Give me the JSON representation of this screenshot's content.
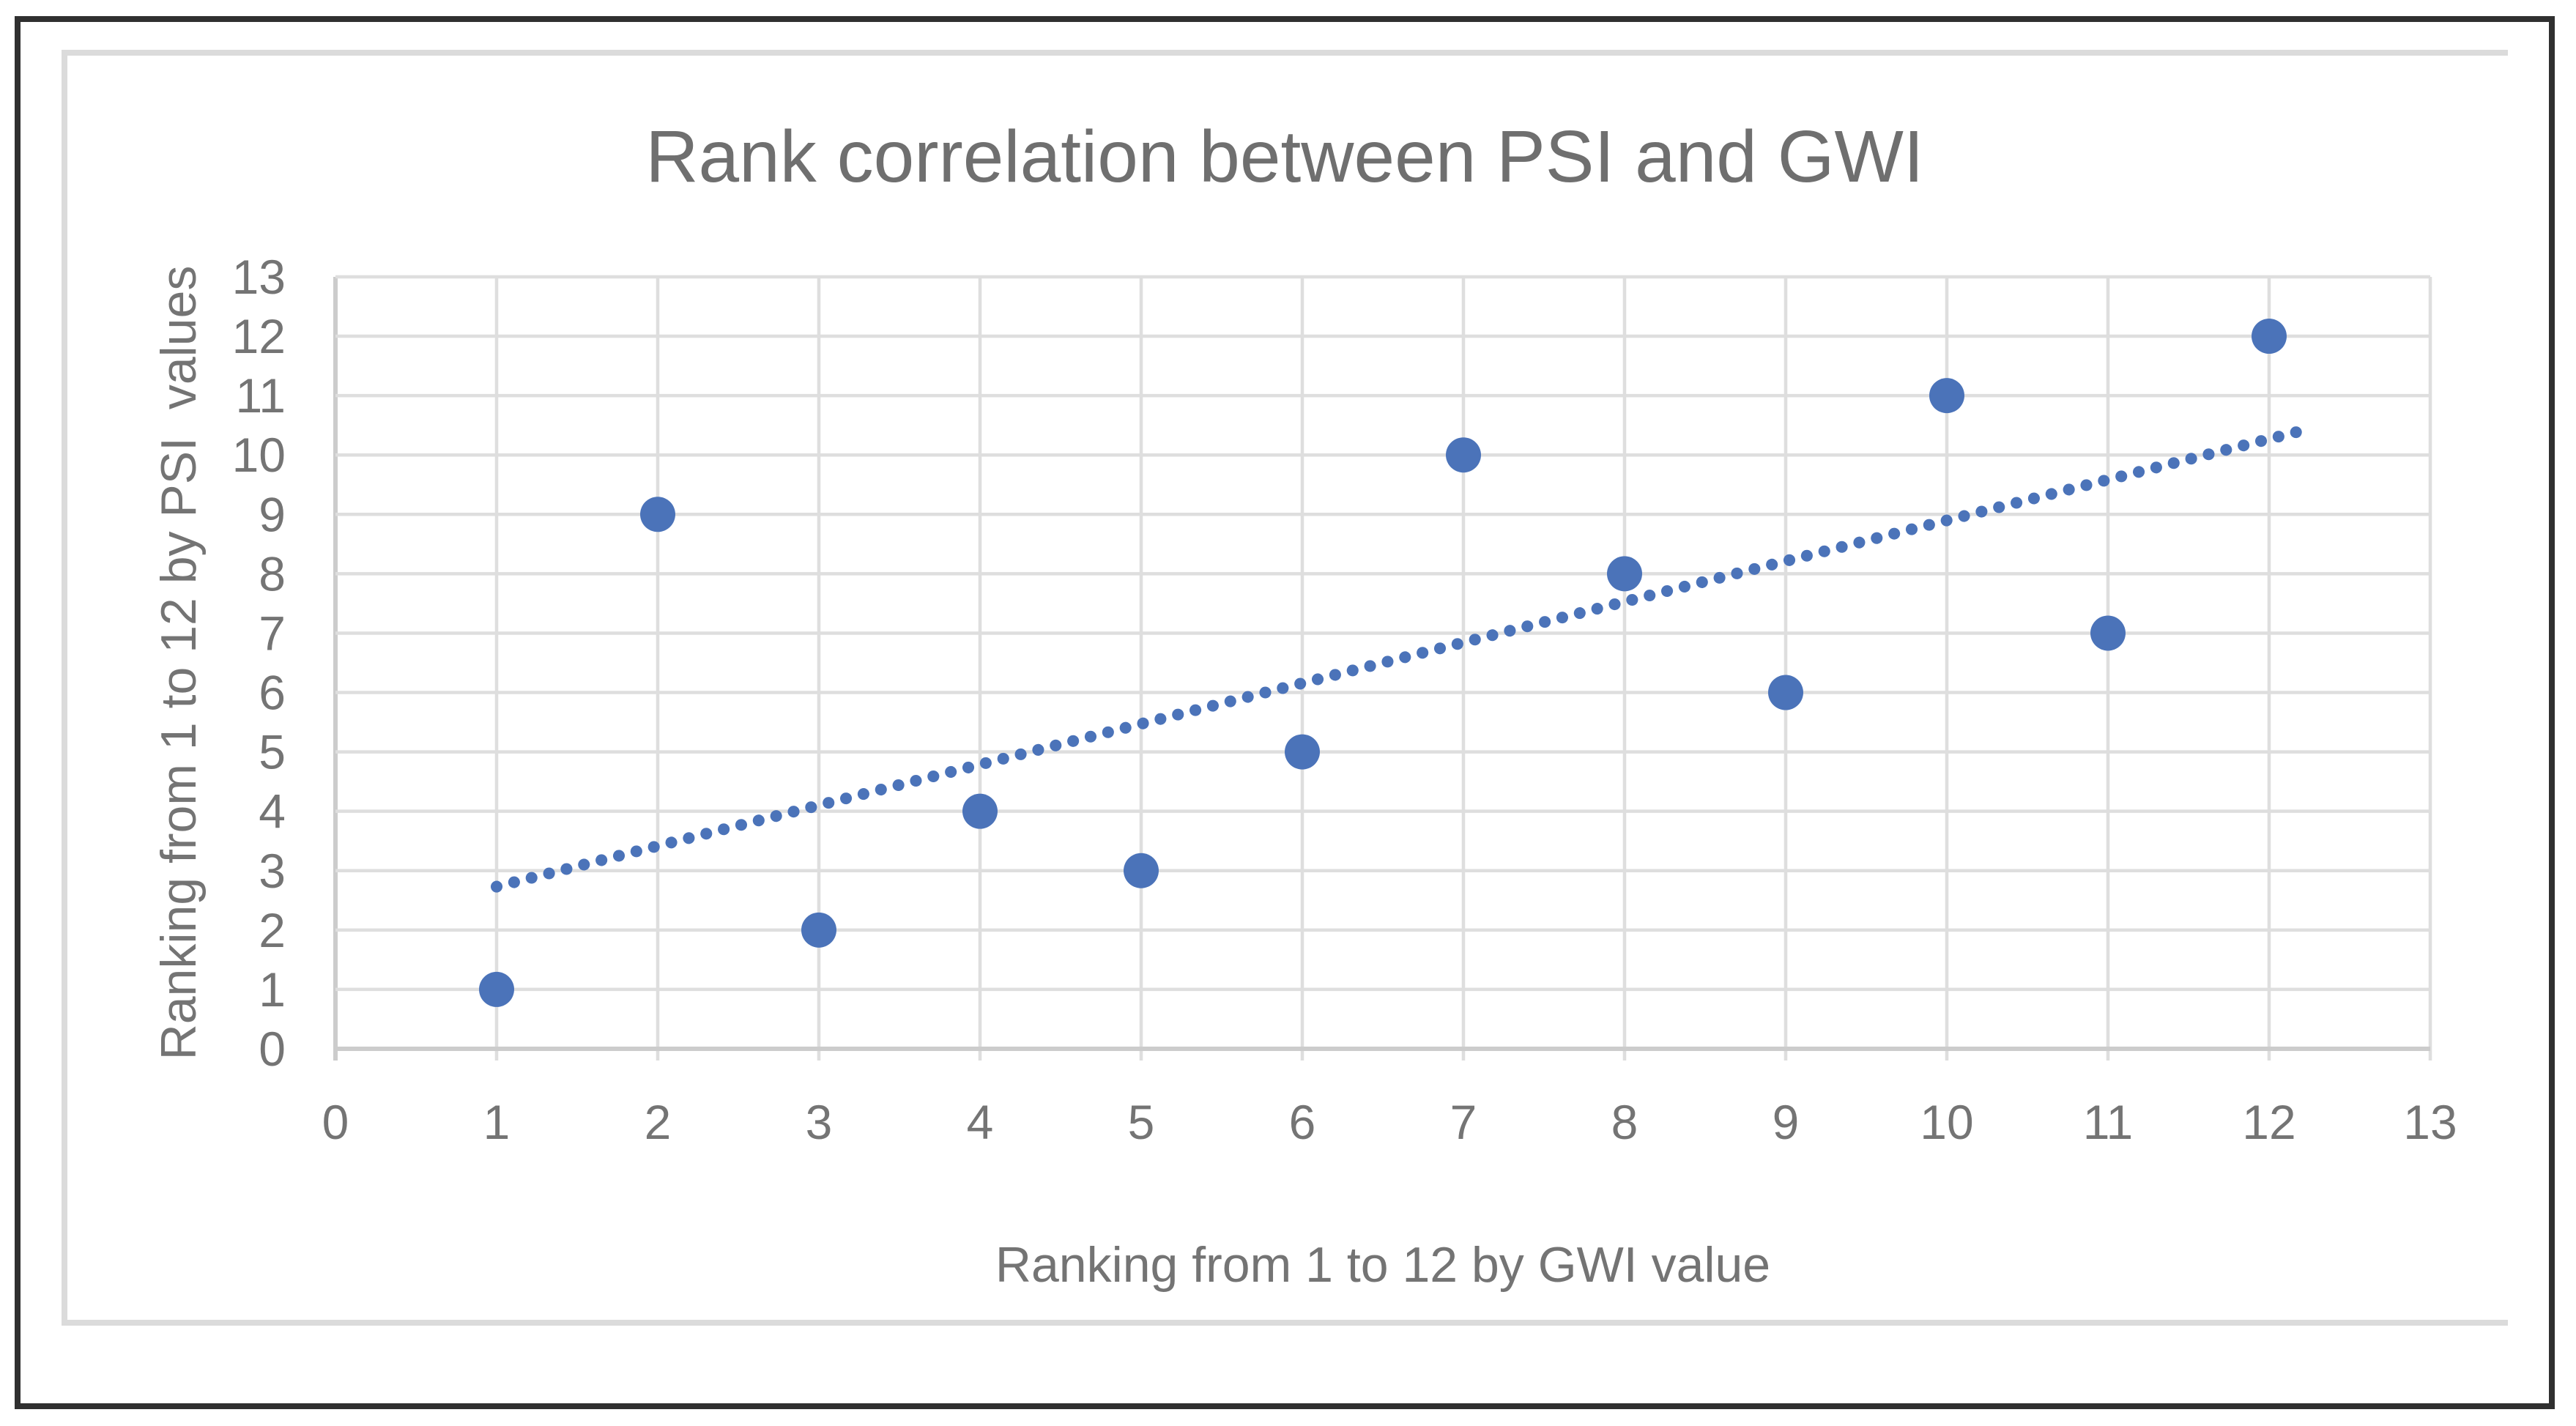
{
  "chart": {
    "title": "Rank correlation between PSI and GWI",
    "xlabel": "Ranking from 1 to 12 by GWI value",
    "ylabel": "Ranking from 1 to 12 by PSI  values"
  },
  "chart_data": {
    "type": "scatter",
    "title": "Rank correlation between PSI and GWI",
    "xlabel": "Ranking from 1 to 12 by GWI value",
    "ylabel": "Ranking from 1 to 12 by PSI  values",
    "points": [
      {
        "x": 1,
        "y": 1
      },
      {
        "x": 2,
        "y": 9
      },
      {
        "x": 3,
        "y": 2
      },
      {
        "x": 4,
        "y": 4
      },
      {
        "x": 5,
        "y": 3
      },
      {
        "x": 6,
        "y": 5
      },
      {
        "x": 7,
        "y": 10
      },
      {
        "x": 8,
        "y": 8
      },
      {
        "x": 9,
        "y": 6
      },
      {
        "x": 10,
        "y": 11
      },
      {
        "x": 11,
        "y": 7
      },
      {
        "x": 12,
        "y": 12
      }
    ],
    "xlim": [
      0,
      13
    ],
    "ylim": [
      0,
      13
    ],
    "x_ticks": [
      0,
      1,
      2,
      3,
      4,
      5,
      6,
      7,
      8,
      9,
      10,
      11,
      12,
      13
    ],
    "y_ticks": [
      0,
      1,
      2,
      3,
      4,
      5,
      6,
      7,
      8,
      9,
      10,
      11,
      12,
      13
    ],
    "grid": true,
    "legend": false,
    "trendline": {
      "style": "dotted",
      "slope": 0.6853,
      "intercept": 2.0455,
      "x_start": 1.0,
      "x_end": 12.2
    },
    "colors": {
      "points": "#4B73B9",
      "trendline": "#4B73B9",
      "gridline": "#DEDEDE",
      "axis_line": "#CCCCCC",
      "tick_text": "#747474",
      "title_text": "#6F6F6F"
    }
  }
}
